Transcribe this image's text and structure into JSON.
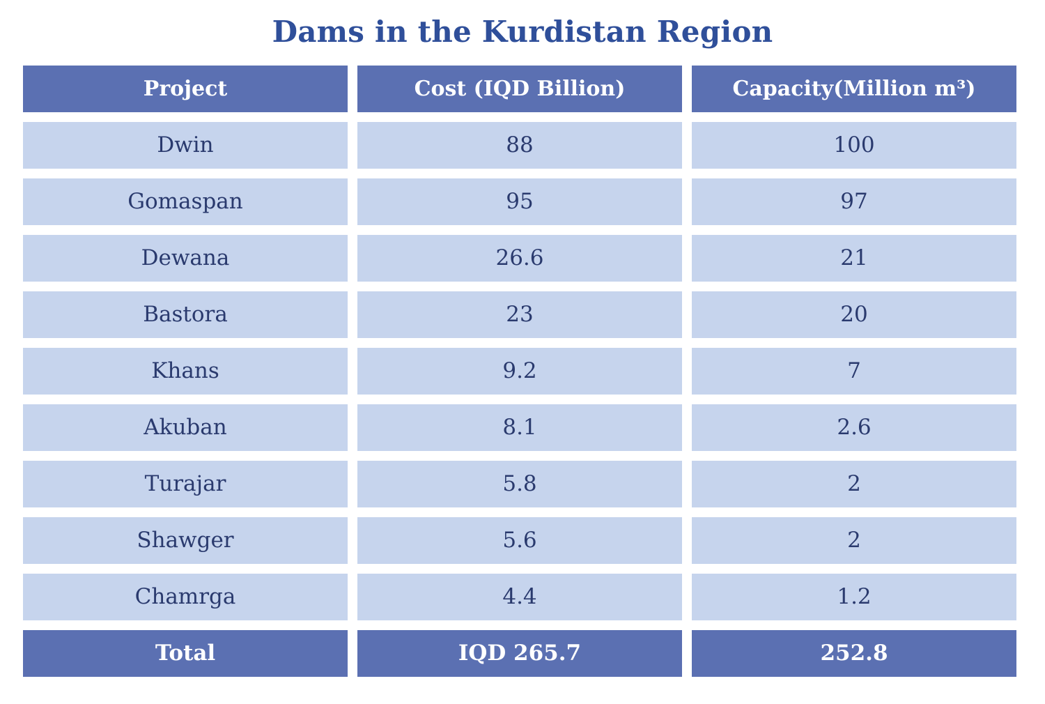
{
  "title": "Dams in the Kurdistan Region",
  "colors": {
    "title": "#2f4f9a",
    "header_bg": "#5b70b2",
    "row_bg": "#c6d4ed",
    "row_text": "#2a3a6e"
  },
  "table": {
    "headers": [
      "Project",
      "Cost (IQD Billion)",
      "Capacity(Million m³)"
    ],
    "rows": [
      [
        "Dwin",
        "88",
        "100"
      ],
      [
        "Gomaspan",
        "95",
        "97"
      ],
      [
        "Dewana",
        "26.6",
        "21"
      ],
      [
        "Bastora",
        "23",
        "20"
      ],
      [
        "Khans",
        "9.2",
        "7"
      ],
      [
        "Akuban",
        "8.1",
        "2.6"
      ],
      [
        "Turajar",
        "5.8",
        "2"
      ],
      [
        "Shawger",
        "5.6",
        "2"
      ],
      [
        "Chamrga",
        "4.4",
        "1.2"
      ]
    ],
    "total": [
      "Total",
      "IQD 265.7",
      "252.8"
    ]
  }
}
